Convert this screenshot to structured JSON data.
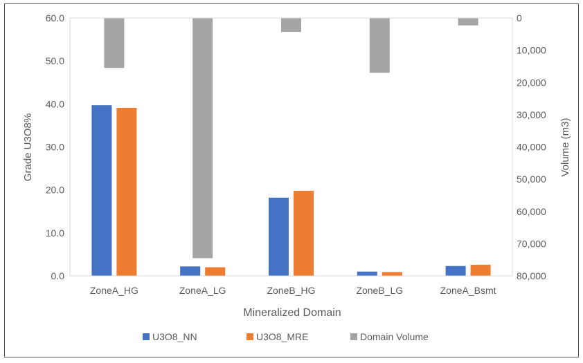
{
  "chart_data": {
    "type": "bar",
    "title": "",
    "categories": [
      "ZoneA_HG",
      "ZoneA_LG",
      "ZoneB_HG",
      "ZoneB_LG",
      "ZoneA_Bsmt"
    ],
    "series": [
      {
        "name": "U3O8_NN",
        "axis": "left",
        "color": "#4472C4",
        "values": [
          39.7,
          2.2,
          18.2,
          1.0,
          2.3
        ]
      },
      {
        "name": "U3O8_MRE",
        "axis": "left",
        "color": "#ED7D31",
        "values": [
          39.1,
          2.0,
          19.8,
          0.9,
          2.6
        ]
      },
      {
        "name": "Domain Volume",
        "axis": "right",
        "color": "#A5A5A5",
        "values": [
          15500,
          74500,
          4300,
          17000,
          2300
        ]
      }
    ],
    "xlabel": "Mineralized Domain",
    "ylabel": "Grade U3O8%",
    "y2label": "Volume (m3)",
    "ylim": [
      0,
      60
    ],
    "y2lim": [
      0,
      80000
    ],
    "y2_reversed": true,
    "yticks": [
      "0.0",
      "10.0",
      "20.0",
      "30.0",
      "40.0",
      "50.0",
      "60.0"
    ],
    "y2ticks": [
      "0",
      "10,000",
      "20,000",
      "30,000",
      "40,000",
      "50,000",
      "60,000",
      "70,000",
      "80,000"
    ],
    "grid": false,
    "legend_position": "bottom"
  }
}
